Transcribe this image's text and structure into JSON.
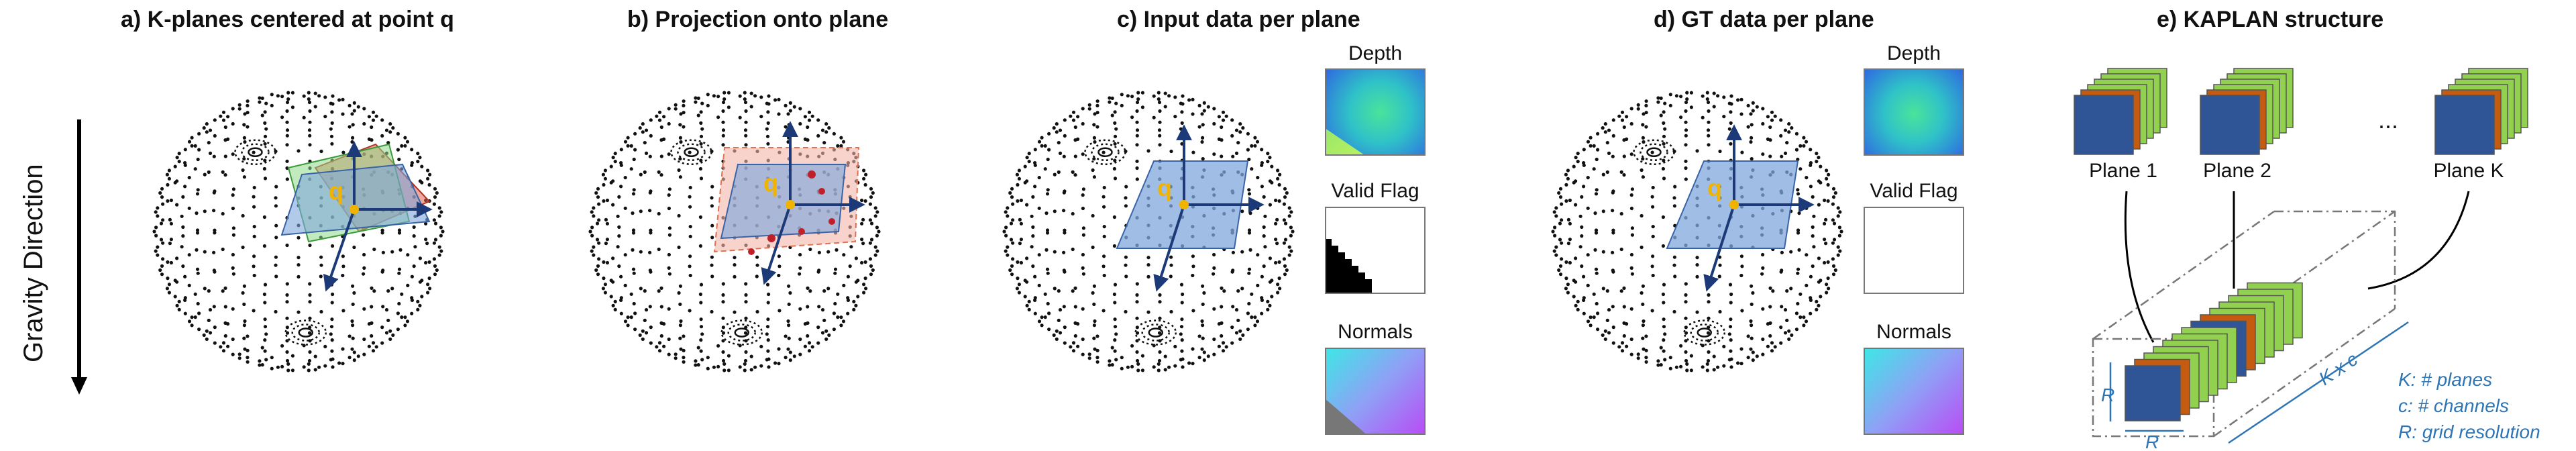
{
  "panels": {
    "a": {
      "title": "a) K-planes centered at point q"
    },
    "b": {
      "title": "b) Projection onto plane"
    },
    "c": {
      "title": "c) Input data per plane"
    },
    "d": {
      "title": "d) GT data per plane"
    },
    "e": {
      "title": "e) KAPLAN structure"
    }
  },
  "gravity_label": "Gravity Direction",
  "point_label": "q",
  "data_labels": {
    "depth": "Depth",
    "valid_flag": "Valid Flag",
    "normals": "Normals"
  },
  "kaplan": {
    "plane_1": "Plane 1",
    "plane_2": "Plane 2",
    "ellipsis": "...",
    "plane_k": "Plane K",
    "dim_r_vertical": "R",
    "dim_r_horizontal": "R",
    "dim_kxc": "K x c",
    "legend": [
      "K:  # planes",
      "c:  # channels",
      "R:  grid resolution"
    ]
  },
  "colors": {
    "plane_blue": "#7fa7dc",
    "plane_green": "#8fd98a",
    "plane_red": "#e0604a",
    "axis_navy": "#1c3a78",
    "point_gold": "#f0b400",
    "kaplan_blue": "#2f5597",
    "kaplan_orange": "#c55a11",
    "kaplan_green": "#92d050",
    "annotation_blue": "#2e75b6"
  }
}
